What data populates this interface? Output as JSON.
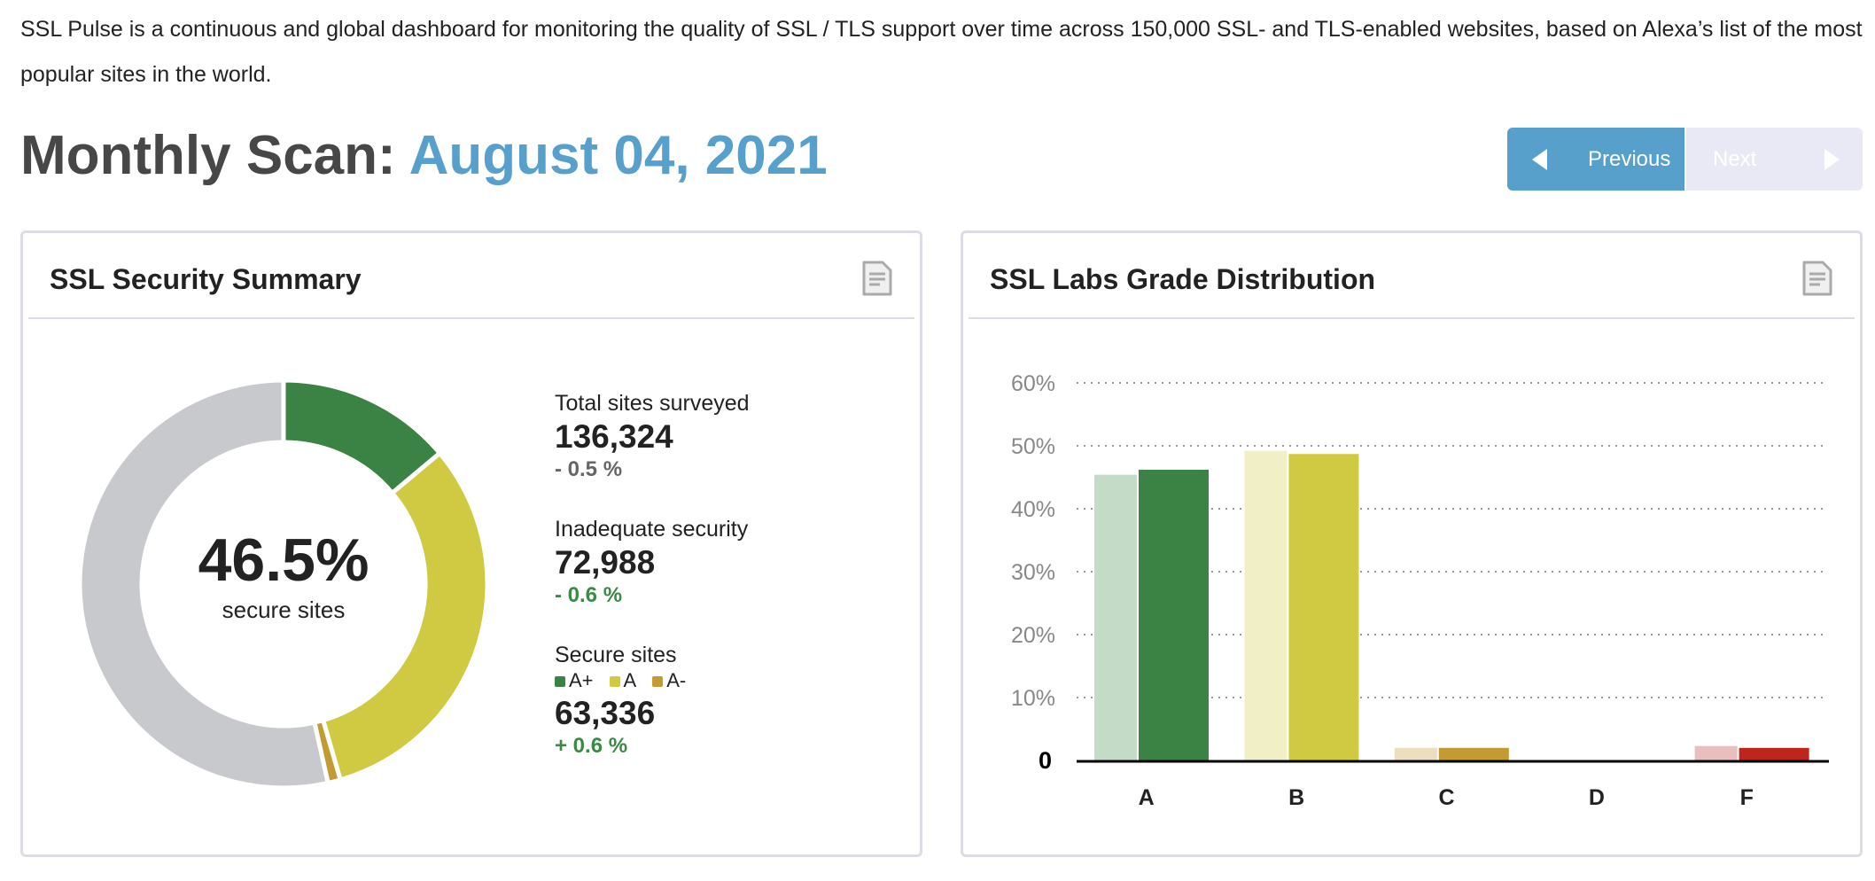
{
  "intro": "SSL Pulse is a continuous and global dashboard for monitoring the quality of SSL / TLS support over time across 150,000 SSL- and TLS-enabled websites, based on Alexa’s list of the most popular sites in the world.",
  "heading": {
    "prefix": "Monthly Scan:",
    "date": "August 04, 2021"
  },
  "pager": {
    "previous": "Previous",
    "next": "Next",
    "previous_icon": "triangle-left-icon",
    "next_icon": "triangle-right-icon",
    "active_color": "#57a0cc",
    "disabled_color": "#e9e9f5"
  },
  "summary": {
    "title": "SSL Security Summary",
    "icon": "document-icon",
    "center_value": "46.5%",
    "center_label": "secure sites",
    "stats": [
      {
        "label": "Total sites surveyed",
        "value": "136,324",
        "change": "- 0.5 %",
        "change_color": "#666666"
      },
      {
        "label": "Inadequate security",
        "value": "72,988",
        "change": "- 0.6 %",
        "change_color": "#3a8a45"
      },
      {
        "label": "Secure sites",
        "value": "63,336",
        "change": "+ 0.6 %",
        "change_color": "#3a8a45"
      }
    ],
    "legend": [
      {
        "label": "A+",
        "color": "#3a8344"
      },
      {
        "label": "A",
        "color": "#cfca42"
      },
      {
        "label": "A-",
        "color": "#c49a33"
      }
    ]
  },
  "distribution": {
    "title": "SSL Labs Grade Distribution",
    "icon": "document-icon"
  },
  "chart_data": [
    {
      "type": "pie",
      "slices": [
        {
          "label": "A+",
          "value": 13.9,
          "color": "#3a8344"
        },
        {
          "label": "A",
          "value": 31.6,
          "color": "#cfca42"
        },
        {
          "label": "A-",
          "value": 1.0,
          "color": "#c49a33"
        },
        {
          "label": "Inadequate security",
          "value": 53.5,
          "color": "#c8c9cd"
        }
      ]
    },
    {
      "type": "bar",
      "categories": [
        "A",
        "B",
        "C",
        "D",
        "F"
      ],
      "series": [
        {
          "values": [
            45.4,
            49.2,
            2.0,
            0,
            2.3
          ],
          "colors": [
            "#c3dbc7",
            "#f1efc6",
            "#ebdfc0",
            "#eeeeee",
            "#e8bfbd"
          ]
        },
        {
          "values": [
            46.2,
            48.7,
            2.0,
            0,
            2.0
          ],
          "colors": [
            "#3a8344",
            "#cfca42",
            "#c49a33",
            "#999999",
            "#bd261d"
          ]
        }
      ],
      "yticks": [
        "0",
        "10%",
        "20%",
        "30%",
        "40%",
        "50%",
        "60%"
      ],
      "ylim": [
        0,
        60
      ],
      "grid": true
    }
  ]
}
